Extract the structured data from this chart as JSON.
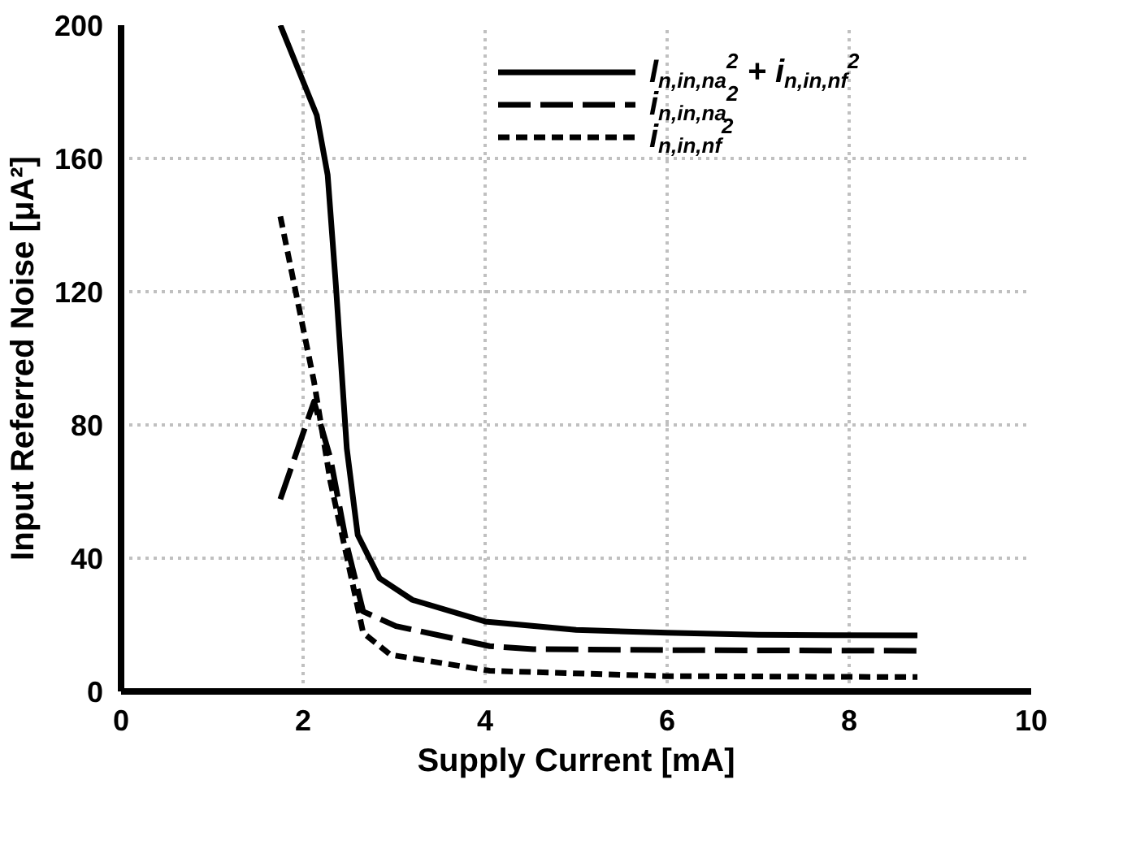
{
  "chart_data": {
    "type": "line",
    "xlabel": "Supply Current [mA]",
    "ylabel": "Input Referred Noise [μA²]",
    "xlim": [
      0,
      10
    ],
    "xticks": [
      0,
      2,
      4,
      6,
      8,
      10
    ],
    "ylim": [
      0,
      200
    ],
    "yticks": [
      0,
      40,
      80,
      120,
      160,
      200
    ],
    "grid": true,
    "legend": "top right",
    "series": [
      {
        "name": "I$_{n,in,na}$$^{2}$ + i$_{n,in,nf}$$^{2}$",
        "color": "#000000",
        "line_style": "solid",
        "x": [
          1.75,
          2.15,
          2.27,
          2.36,
          2.48,
          2.6,
          2.84,
          3.2,
          4.0,
          5.0,
          6.0,
          7.0,
          8.75
        ],
        "values": [
          200,
          173,
          155,
          122,
          73,
          47,
          34,
          27.5,
          21,
          18.5,
          17.6,
          17,
          16.8
        ]
      },
      {
        "name": "i$_{n,in,na}$$^{2}$",
        "color": "#000000",
        "line_style": "dashed",
        "x": [
          1.75,
          2.12,
          2.3,
          2.48,
          2.66,
          3.02,
          4.05,
          4.53,
          6.0,
          8.75
        ],
        "values": [
          57.7,
          87,
          70,
          44,
          24,
          19.6,
          13.6,
          12.7,
          12.4,
          12.2
        ]
      },
      {
        "name": "i$_{n,in,nf}$$^{2}$",
        "color": "#000000",
        "line_style": "dotted",
        "x": [
          1.75,
          2.12,
          2.3,
          2.48,
          2.66,
          2.96,
          4.05,
          5.98,
          8.75
        ],
        "values": [
          142.6,
          93,
          63,
          40.5,
          17.6,
          11,
          6.2,
          4.6,
          4.3
        ]
      }
    ]
  }
}
